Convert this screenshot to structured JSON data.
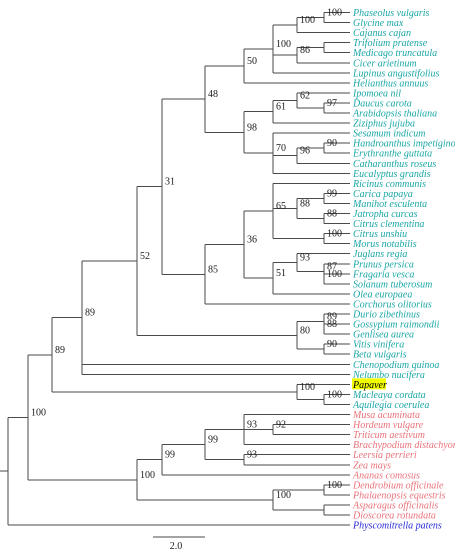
{
  "colors": {
    "eudicot": "#1aa6a6",
    "monocot": "#e8727a",
    "outgroup": "#2a2ad6",
    "query": "#000000",
    "highlight": "#f2ff00",
    "branch": "#4a4a4a"
  },
  "scale_bar": {
    "label": "2.0"
  },
  "taxa": [
    {
      "name": "Phaseolus vulgaris",
      "group": "eudicot"
    },
    {
      "name": "Glycine max",
      "group": "eudicot"
    },
    {
      "name": "Cajanus cajan",
      "group": "eudicot"
    },
    {
      "name": "Trifolium pratense",
      "group": "eudicot"
    },
    {
      "name": "Medicago truncatula",
      "group": "eudicot"
    },
    {
      "name": "Cicer arietinum",
      "group": "eudicot"
    },
    {
      "name": "Lupinus angustifolius",
      "group": "eudicot"
    },
    {
      "name": "Helianthus annuus",
      "group": "eudicot"
    },
    {
      "name": "Ipomoea nil",
      "group": "eudicot"
    },
    {
      "name": "Daucus carota",
      "group": "eudicot"
    },
    {
      "name": "Arabidopsis thaliana",
      "group": "eudicot"
    },
    {
      "name": "Ziziphus jujuba",
      "group": "eudicot"
    },
    {
      "name": "Sesamum indicum",
      "group": "eudicot"
    },
    {
      "name": "Handroanthus impetiginosus",
      "group": "eudicot"
    },
    {
      "name": "Erythranthe guttata",
      "group": "eudicot"
    },
    {
      "name": "Catharanthus roseus",
      "group": "eudicot"
    },
    {
      "name": "Eucalyptus grandis",
      "group": "eudicot"
    },
    {
      "name": "Ricinus communis",
      "group": "eudicot"
    },
    {
      "name": "Carica papaya",
      "group": "eudicot"
    },
    {
      "name": "Manihot esculenta",
      "group": "eudicot"
    },
    {
      "name": "Jatropha curcas",
      "group": "eudicot"
    },
    {
      "name": "Citrus clementina",
      "group": "eudicot"
    },
    {
      "name": "Citrus unshiu",
      "group": "eudicot"
    },
    {
      "name": "Morus notabilis",
      "group": "eudicot"
    },
    {
      "name": "Juglans regia",
      "group": "eudicot"
    },
    {
      "name": "Prunus persica",
      "group": "eudicot"
    },
    {
      "name": "Fragaria vesca",
      "group": "eudicot"
    },
    {
      "name": "Solanum tuberosum",
      "group": "eudicot"
    },
    {
      "name": "Olea europaea",
      "group": "eudicot"
    },
    {
      "name": "Corchorus olitorius",
      "group": "eudicot"
    },
    {
      "name": "Durio zibethinus",
      "group": "eudicot"
    },
    {
      "name": "Gossypium raimondii",
      "group": "eudicot"
    },
    {
      "name": "Genlisea aurea",
      "group": "eudicot"
    },
    {
      "name": "Vitis vinifera",
      "group": "eudicot"
    },
    {
      "name": "Beta vulgaris",
      "group": "eudicot"
    },
    {
      "name": "Chenopodium quinoa",
      "group": "eudicot"
    },
    {
      "name": "Nelumbo nucifera",
      "group": "eudicot"
    },
    {
      "name": "Papaver",
      "group": "query"
    },
    {
      "name": "Macleaya cordata",
      "group": "eudicot"
    },
    {
      "name": "Aquilegia coerulea",
      "group": "eudicot"
    },
    {
      "name": "Musa acuminata",
      "group": "monocot"
    },
    {
      "name": "Hordeum vulgare",
      "group": "monocot"
    },
    {
      "name": "Triticum aestivum",
      "group": "monocot"
    },
    {
      "name": "Brachypodium distachyon",
      "group": "monocot"
    },
    {
      "name": "Leersia perrieri",
      "group": "monocot"
    },
    {
      "name": "Zea mays",
      "group": "monocot"
    },
    {
      "name": "Ananas comosus",
      "group": "monocot"
    },
    {
      "name": "Dendrobium officinale",
      "group": "monocot"
    },
    {
      "name": "Phalaenopsis equestris",
      "group": "monocot"
    },
    {
      "name": "Asparagus officinalis",
      "group": "monocot"
    },
    {
      "name": "Dioscorea rotundata",
      "group": "monocot"
    },
    {
      "name": "Physcomitrella patens",
      "group": "outgroup"
    }
  ],
  "bootstrap": {
    "n1": "100",
    "n2": "100",
    "n3": "86",
    "n4": "100",
    "n5": "50",
    "n6": "62",
    "n7": "97",
    "n8": "61",
    "n9": "90",
    "n10": "96",
    "n11": "70",
    "n12": "98",
    "n13": "48",
    "n14": "99",
    "n15": "88",
    "n16": "88",
    "n17": "100",
    "n18": "65",
    "n19": "93",
    "n20": "87",
    "n21": "100",
    "n22": "51",
    "n23": "36",
    "n24": "85",
    "n25": "31",
    "n26": "89",
    "n27": "88",
    "n28": "90",
    "n29": "80",
    "n30": "100",
    "n31": "52",
    "n32": "89",
    "n33": "100",
    "n34": "100",
    "n35": "89",
    "n36": "92",
    "n37": "93",
    "n38": "93",
    "n39": "99",
    "n40": "99",
    "n41": "100",
    "n42": "100",
    "n43": "100",
    "n44": "100"
  }
}
